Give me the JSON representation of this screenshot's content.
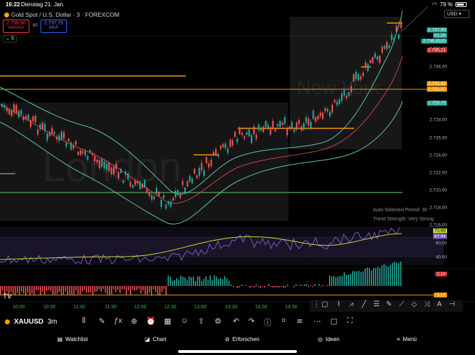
{
  "status": {
    "time": "16:22",
    "date": "Dienstag 21. Jan.",
    "battery": "79 %"
  },
  "header": {
    "title": "Gold Spot / U.S. Dollar · 3 · FOREXCOM",
    "sell_price": "2.736,90",
    "sell_label": "VERKAUF",
    "spread": "80",
    "buy_price": "2.737,70",
    "buy_label": "KAUF",
    "collapse": "9",
    "currency": "USD"
  },
  "price_axis": [
    "2.738,00",
    "2.736,00",
    "2.734,00",
    "2.732,00",
    "2.730,00",
    "2.728,00",
    "2.726,00",
    "2.724,00",
    "2.722,00",
    "2.720,00",
    "2.718,00",
    "2.716,00"
  ],
  "price_tags": {
    "current": "2.737,00",
    "countdown": "01:25",
    "bid": "2.736,4320",
    "red": "2.735,21",
    "orange1": "2.731,42",
    "orange2": "2.731,42",
    "green": "2.729,72"
  },
  "chart_overlay": {
    "session_london": "London",
    "session_ny": "New York",
    "auto_period": "Auto-Selected Period: 30",
    "trend_strength": "Trend Strength: Very Strong"
  },
  "rsi_axis": [
    "60,00",
    "40,00"
  ],
  "rsi_tags": {
    "rsi": "73,68",
    "ma": "67,94"
  },
  "macd_tags": {
    "pos": "2,10",
    "neg": "-1,17"
  },
  "time_axis": [
    "10:00",
    "10:30",
    "11:00",
    "11:30",
    "12:00",
    "12:30",
    "13:00",
    "13:30",
    "14:00",
    "14:30"
  ],
  "toolbar": {
    "symbol": "XAUUSD",
    "timeframe": "3m"
  },
  "tabs": [
    "Watchlist",
    "Chart",
    "Erforschen",
    "Ideen",
    "Menü"
  ],
  "colors": {
    "up": "#26a69a",
    "down": "#ef5350",
    "orange": "#ff9800",
    "green": "#4caf50",
    "rsi": "#7e57c2",
    "bb": "#5fc2b6"
  }
}
